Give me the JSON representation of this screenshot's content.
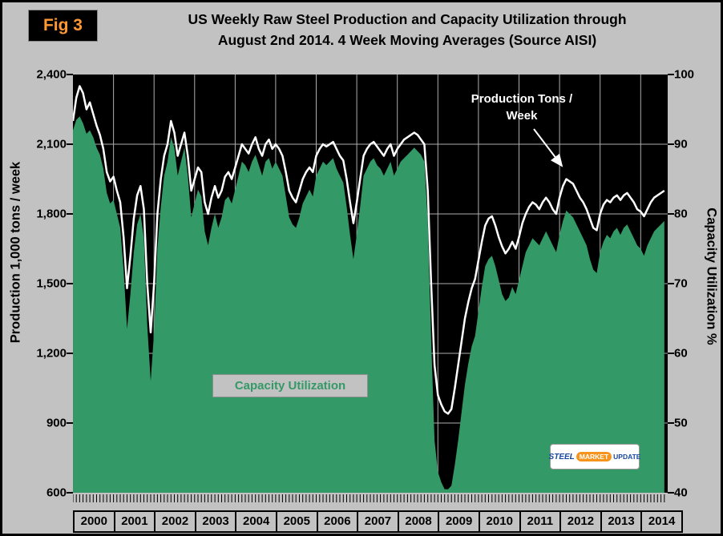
{
  "labels": {
    "fig_tag": "Fig 3",
    "title_line1": "US Weekly Raw Steel Production and Capacity Utilization through",
    "title_line2": "August 2nd 2014. 4 Week Moving Averages (Source AISI)",
    "production_label_line1": "Production Tons /",
    "production_label_line2": "Week",
    "capacity_label": "Capacity Utilization",
    "logo_steel": "STEEL",
    "logo_market": "MARKET",
    "logo_update": "UPDATE"
  },
  "colors": {
    "background": "#c2c2c2",
    "plot_background": "#000000",
    "capacity_fill": "#339966",
    "production_line": "#ffffff",
    "fig_tag_text": "#ff9933",
    "gridline": "#e8e8e8"
  },
  "chart_data": {
    "type": "area",
    "description": "US weekly raw steel production and capacity utilization, 4-week moving averages, Jan 2000 through Aug 2nd 2014 (Source AISI)",
    "x_start": 2000.0,
    "x_step_years": 0.0833333,
    "x_axis": {
      "range": [
        2000,
        2014.667
      ],
      "year_labels": [
        "2000",
        "2001",
        "2002",
        "2003",
        "2004",
        "2005",
        "2006",
        "2007",
        "2008",
        "2009",
        "2010",
        "2011",
        "2012",
        "2013",
        "2014"
      ]
    },
    "left_axis": {
      "label": "Production 1,000 tons / week",
      "range": [
        600,
        2400
      ],
      "tick_step": 300,
      "tick_labels": [
        "2,400",
        "2,100",
        "1,800",
        "1,500",
        "1,200",
        "900",
        "600"
      ]
    },
    "right_axis": {
      "label": "Capacity Utilization %",
      "range": [
        40,
        100
      ],
      "tick_step": 10,
      "tick_labels": [
        "100",
        "90",
        "80",
        "70",
        "60",
        "50",
        "40"
      ]
    },
    "grid": true,
    "series": [
      {
        "name": "Capacity Utilization",
        "type": "area",
        "axis": "right",
        "unit": "%",
        "color": "#339966",
        "values": [
          92,
          93.5,
          94,
          93,
          91.5,
          92,
          91,
          89.5,
          88.5,
          86.5,
          83,
          81.5,
          82,
          80,
          78,
          72,
          63.5,
          68.5,
          74.5,
          78.5,
          80,
          76.5,
          64,
          56,
          63,
          75,
          81,
          85.5,
          87.5,
          91,
          89.5,
          85.5,
          87.5,
          89.5,
          85.5,
          79.5,
          81.5,
          83.5,
          82.5,
          77.5,
          75.5,
          78,
          80,
          78,
          79.5,
          82,
          82.5,
          81.5,
          83.5,
          85.5,
          87.5,
          87,
          86,
          87.5,
          88.5,
          87,
          85.5,
          87.5,
          88,
          86.5,
          87.5,
          86.5,
          85.5,
          82.5,
          79.5,
          78.5,
          78,
          79.5,
          81.5,
          82.5,
          83.5,
          82.5,
          85.5,
          86.5,
          87.5,
          87,
          87.5,
          88,
          86.5,
          85.5,
          84.5,
          81,
          77,
          73.5,
          77,
          81,
          85.5,
          86.5,
          87.5,
          88,
          87,
          86.5,
          85.5,
          86.5,
          87.5,
          85.5,
          86.5,
          87.5,
          88,
          88.5,
          89,
          89.5,
          89,
          88.5,
          87.5,
          79,
          62,
          47.5,
          43,
          41.5,
          40.5,
          40.5,
          41,
          44,
          47.5,
          51.5,
          55.5,
          58.5,
          61,
          62.5,
          66,
          69.5,
          72.5,
          73.5,
          74,
          72.5,
          70.5,
          68.5,
          67.5,
          68,
          69.5,
          68.5,
          70.5,
          72.5,
          74.5,
          75.5,
          76.5,
          76,
          75.5,
          76.5,
          77.5,
          76.5,
          75.5,
          74.5,
          77,
          79,
          80.5,
          80,
          79.5,
          78.5,
          77.5,
          76.5,
          75.5,
          73.5,
          72,
          71.5,
          74.5,
          76,
          77,
          76.5,
          77.5,
          78,
          77,
          78,
          78.5,
          77.5,
          76.5,
          75.5,
          75,
          74,
          75.5,
          76.5,
          77.5,
          78,
          78.5,
          79
        ]
      },
      {
        "name": "Production Tons / Week",
        "type": "line",
        "axis": "left",
        "unit": "1,000 tons / week",
        "color": "#ffffff",
        "values": [
          2200,
          2300,
          2350,
          2320,
          2250,
          2280,
          2230,
          2180,
          2140,
          2080,
          1980,
          1940,
          1960,
          1900,
          1850,
          1700,
          1480,
          1620,
          1780,
          1880,
          1920,
          1820,
          1500,
          1290,
          1500,
          1800,
          1950,
          2050,
          2100,
          2200,
          2150,
          2050,
          2100,
          2150,
          2050,
          1900,
          1950,
          2000,
          1980,
          1850,
          1800,
          1870,
          1920,
          1870,
          1900,
          1960,
          1980,
          1950,
          2000,
          2050,
          2100,
          2080,
          2060,
          2100,
          2130,
          2080,
          2050,
          2100,
          2120,
          2080,
          2100,
          2080,
          2050,
          1980,
          1900,
          1870,
          1850,
          1900,
          1950,
          1980,
          2000,
          1980,
          2050,
          2080,
          2100,
          2090,
          2100,
          2110,
          2080,
          2050,
          2030,
          1950,
          1850,
          1760,
          1850,
          1950,
          2050,
          2080,
          2100,
          2110,
          2090,
          2070,
          2050,
          2080,
          2100,
          2050,
          2080,
          2100,
          2120,
          2130,
          2140,
          2150,
          2140,
          2120,
          2100,
          1900,
          1500,
          1150,
          1020,
          980,
          950,
          940,
          960,
          1050,
          1150,
          1250,
          1350,
          1420,
          1480,
          1520,
          1600,
          1680,
          1750,
          1780,
          1790,
          1750,
          1700,
          1660,
          1630,
          1650,
          1680,
          1650,
          1700,
          1760,
          1800,
          1830,
          1850,
          1840,
          1820,
          1850,
          1870,
          1850,
          1820,
          1800,
          1870,
          1920,
          1950,
          1940,
          1930,
          1900,
          1870,
          1850,
          1820,
          1780,
          1740,
          1730,
          1800,
          1840,
          1860,
          1850,
          1870,
          1880,
          1860,
          1880,
          1890,
          1870,
          1850,
          1820,
          1810,
          1790,
          1820,
          1850,
          1870,
          1880,
          1890,
          1900
        ]
      }
    ]
  }
}
